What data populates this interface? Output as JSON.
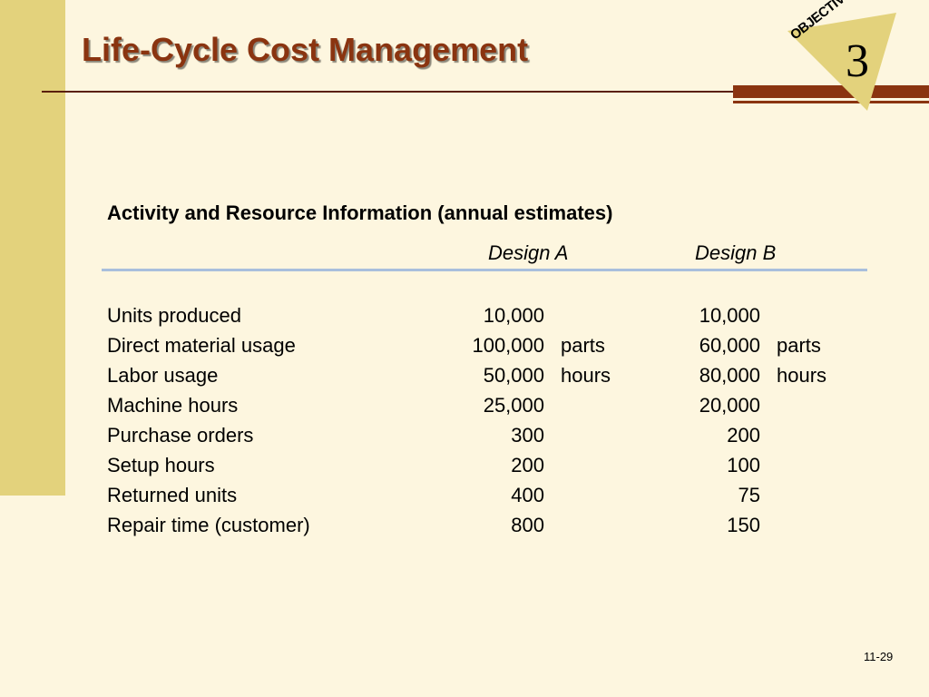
{
  "slide": {
    "title": "Life-Cycle Cost Management",
    "badge_label": "OBJECTIVE",
    "badge_number": "3",
    "page_number": "11-29",
    "colors": {
      "background": "#fdf6df",
      "left_bar": "#e3d27c",
      "title": "#8a3410",
      "accent_rule": "#8a3410",
      "badge": "#e3d27c",
      "header_rule": "#a9bfdc"
    }
  },
  "table": {
    "heading": "Activity and Resource Information (annual estimates)",
    "columns": [
      "Design A",
      "Design B"
    ],
    "rows": [
      {
        "label": "Units produced",
        "a": "10,000",
        "a_unit": "",
        "b": "10,000",
        "b_unit": ""
      },
      {
        "label": "Direct material usage",
        "a": "100,000",
        "a_unit": "parts",
        "b": "60,000",
        "b_unit": "parts"
      },
      {
        "label": "Labor usage",
        "a": "50,000",
        "a_unit": "hours",
        "b": "80,000",
        "b_unit": "hours"
      },
      {
        "label": "Machine hours",
        "a": "25,000",
        "a_unit": "",
        "b": "20,000",
        "b_unit": ""
      },
      {
        "label": "Purchase orders",
        "a": "300",
        "a_unit": "",
        "b": "200",
        "b_unit": ""
      },
      {
        "label": "Setup hours",
        "a": "200",
        "a_unit": "",
        "b": "100",
        "b_unit": ""
      },
      {
        "label": "Returned units",
        "a": "400",
        "a_unit": "",
        "b": "75",
        "b_unit": ""
      },
      {
        "label": "Repair time (customer)",
        "a": "800",
        "a_unit": "",
        "b": "150",
        "b_unit": ""
      }
    ]
  }
}
